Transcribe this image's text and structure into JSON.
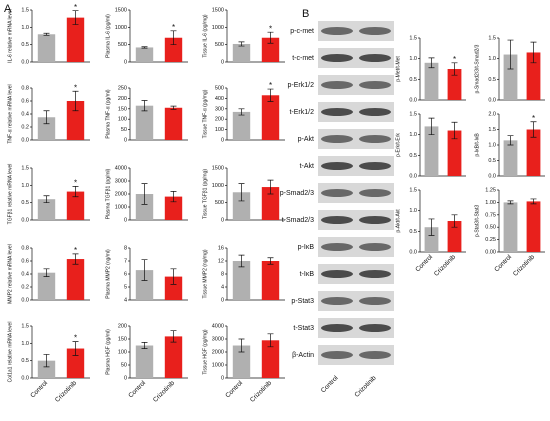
{
  "panel_labels": [
    "A",
    "B"
  ],
  "chart_data": [
    {
      "type": "bar",
      "ylabel": "IL-6 relative mRNA level",
      "values": [
        0.8,
        1.28
      ],
      "errors": [
        0.03,
        0.2
      ],
      "colors": [
        "#b0b0b0",
        "#e8201c"
      ],
      "annotation": "*",
      "ylim": [
        0,
        1.5
      ],
      "yticks": [
        {
          "value": 0,
          "label": "0.0"
        },
        {
          "value": 0.5,
          "label": "0.5"
        },
        {
          "value": 1,
          "label": "1.0"
        },
        {
          "value": 1.5,
          "label": "1.5"
        }
      ]
    },
    {
      "type": "bar",
      "ylabel": "Plasma IL-6 (pg/ml)",
      "values": [
        420,
        700
      ],
      "errors": [
        20,
        200
      ],
      "colors": [
        "#b0b0b0",
        "#e8201c"
      ],
      "annotation": "*",
      "ylim": [
        0,
        1500
      ],
      "yticks": [
        0,
        500,
        1000,
        1500
      ]
    },
    {
      "type": "bar",
      "ylabel": "Tissue IL-6 (pg/mg)",
      "values": [
        520,
        700
      ],
      "errors": [
        60,
        160
      ],
      "colors": [
        "#b0b0b0",
        "#e8201c"
      ],
      "annotation": "*",
      "ylim": [
        0,
        1500
      ],
      "yticks": [
        0,
        500,
        1000,
        1500
      ]
    },
    {
      "type": "bar",
      "ylabel": "TNF-α relative mRNA level",
      "values": [
        0.35,
        0.6
      ],
      "errors": [
        0.1,
        0.15
      ],
      "colors": [
        "#b0b0b0",
        "#e8201c"
      ],
      "annotation": "*",
      "ylim": [
        0,
        0.8
      ],
      "yticks": [
        {
          "value": 0,
          "label": "0.0"
        },
        {
          "value": 0.2,
          "label": "0.2"
        },
        {
          "value": 0.4,
          "label": "0.4"
        },
        {
          "value": 0.6,
          "label": "0.6"
        },
        {
          "value": 0.8,
          "label": "0.8"
        }
      ]
    },
    {
      "type": "bar",
      "ylabel": "Plasma TNF-α (pg/ml)",
      "values": [
        165,
        155
      ],
      "errors": [
        25,
        8
      ],
      "colors": [
        "#b0b0b0",
        "#e8201c"
      ],
      "ylim": [
        0,
        250
      ],
      "yticks": [
        0,
        50,
        100,
        150,
        200,
        250
      ]
    },
    {
      "type": "bar",
      "ylabel": "Tissue TNF-α (pg/mg)",
      "values": [
        270,
        430
      ],
      "errors": [
        30,
        60
      ],
      "colors": [
        "#b0b0b0",
        "#e8201c"
      ],
      "annotation": "*",
      "ylim": [
        0,
        500
      ],
      "yticks": [
        0,
        100,
        200,
        300,
        400,
        500
      ]
    },
    {
      "type": "bar",
      "ylabel": "TGFβ1 relative mRNA level",
      "values": [
        0.6,
        0.82
      ],
      "errors": [
        0.1,
        0.15
      ],
      "colors": [
        "#b0b0b0",
        "#e8201c"
      ],
      "annotation": "*",
      "ylim": [
        0,
        1.5
      ],
      "yticks": [
        {
          "value": 0,
          "label": "0.0"
        },
        {
          "value": 0.5,
          "label": "0.5"
        },
        {
          "value": 1,
          "label": "1.0"
        },
        {
          "value": 1.5,
          "label": "1.5"
        }
      ]
    },
    {
      "type": "bar",
      "ylabel": "Plasma TGFβ1 (pg/ml)",
      "values": [
        2000,
        1800
      ],
      "errors": [
        800,
        400
      ],
      "colors": [
        "#b0b0b0",
        "#e8201c"
      ],
      "ylim": [
        0,
        4000
      ],
      "yticks": [
        0,
        1000,
        2000,
        3000,
        4000
      ]
    },
    {
      "type": "bar",
      "ylabel": "Tissue TGFβ1 (pg/mg)",
      "values": [
        800,
        950
      ],
      "errors": [
        250,
        200
      ],
      "colors": [
        "#b0b0b0",
        "#e8201c"
      ],
      "ylim": [
        0,
        1500
      ],
      "yticks": [
        0,
        500,
        1000,
        1500
      ]
    },
    {
      "type": "bar",
      "ylabel": "MMP2 relative mRNA level",
      "values": [
        0.42,
        0.63
      ],
      "errors": [
        0.06,
        0.08
      ],
      "colors": [
        "#b0b0b0",
        "#e8201c"
      ],
      "annotation": "*",
      "ylim": [
        0,
        0.8
      ],
      "yticks": [
        {
          "value": 0,
          "label": "0.0"
        },
        {
          "value": 0.2,
          "label": "0.2"
        },
        {
          "value": 0.4,
          "label": "0.4"
        },
        {
          "value": 0.6,
          "label": "0.6"
        },
        {
          "value": 0.8,
          "label": "0.8"
        }
      ]
    },
    {
      "type": "bar",
      "ylabel": "Plasma MMP2 (ng/ml)",
      "values": [
        6.3,
        5.8
      ],
      "errors": [
        0.8,
        0.6
      ],
      "colors": [
        "#b0b0b0",
        "#e8201c"
      ],
      "ylim": [
        4,
        8
      ],
      "yticks": [
        4,
        5,
        6,
        7,
        8
      ]
    },
    {
      "type": "bar",
      "ylabel": "Tissue MMP2 (ng/mg)",
      "values": [
        12,
        12
      ],
      "errors": [
        1.8,
        1
      ],
      "colors": [
        "#b0b0b0",
        "#e8201c"
      ],
      "ylim": [
        0,
        16
      ],
      "yticks": [
        0,
        4,
        8,
        12,
        16
      ]
    },
    {
      "type": "bar",
      "ylabel": "Col1a1 relative mRNA level",
      "categories": [
        "Control",
        "Crizotinib"
      ],
      "values": [
        0.5,
        0.85
      ],
      "errors": [
        0.18,
        0.2
      ],
      "colors": [
        "#b0b0b0",
        "#e8201c"
      ],
      "annotation": "*",
      "ylim": [
        0,
        1.5
      ],
      "yticks": [
        {
          "value": 0,
          "label": "0.0"
        },
        {
          "value": 0.5,
          "label": "0.5"
        },
        {
          "value": 1,
          "label": "1.0"
        },
        {
          "value": 1.5,
          "label": "1.5"
        }
      ]
    },
    {
      "type": "bar",
      "ylabel": "Plasma HGF (pg/ml)",
      "categories": [
        "Control",
        "Crizotinib"
      ],
      "values": [
        125,
        160
      ],
      "errors": [
        12,
        22
      ],
      "colors": [
        "#b0b0b0",
        "#e8201c"
      ],
      "ylim": [
        0,
        200
      ],
      "yticks": [
        0,
        50,
        100,
        150,
        200
      ]
    },
    {
      "type": "bar",
      "ylabel": "Tissue HGF (pg/mg)",
      "categories": [
        "Control",
        "Crizotinib"
      ],
      "values": [
        2500,
        2900
      ],
      "errors": [
        500,
        500
      ],
      "colors": [
        "#b0b0b0",
        "#e8201c"
      ],
      "ylim": [
        0,
        4000
      ],
      "yticks": [
        0,
        1000,
        2000,
        3000,
        4000
      ]
    },
    {
      "type": "bar",
      "ylabel": "p-Met/t-Met",
      "values": [
        0.9,
        0.75
      ],
      "errors": [
        0.12,
        0.15
      ],
      "colors": [
        "#b0b0b0",
        "#e8201c"
      ],
      "annotation": "*",
      "ylim": [
        0,
        1.5
      ],
      "yticks": [
        {
          "value": 0,
          "label": "0.0"
        },
        {
          "value": 0.5,
          "label": "0.5"
        },
        {
          "value": 1,
          "label": "1.0"
        },
        {
          "value": 1.5,
          "label": "1.5"
        }
      ]
    },
    {
      "type": "bar",
      "ylabel": "p-Smad2/3/t-Smad2/3",
      "values": [
        1.1,
        1.15
      ],
      "errors": [
        0.35,
        0.25
      ],
      "colors": [
        "#b0b0b0",
        "#e8201c"
      ],
      "ylim": [
        0,
        1.5
      ],
      "yticks": [
        {
          "value": 0,
          "label": "0.0"
        },
        {
          "value": 0.5,
          "label": "0.5"
        },
        {
          "value": 1,
          "label": "1.0"
        },
        {
          "value": 1.5,
          "label": "1.5"
        }
      ]
    },
    {
      "type": "bar",
      "ylabel": "p-Erk/t-Erk",
      "values": [
        1.2,
        1.1
      ],
      "errors": [
        0.2,
        0.2
      ],
      "colors": [
        "#b0b0b0",
        "#e8201c"
      ],
      "ylim": [
        0,
        1.5
      ],
      "yticks": [
        {
          "value": 0,
          "label": "0.0"
        },
        {
          "value": 0.5,
          "label": "0.5"
        },
        {
          "value": 1,
          "label": "1.0"
        },
        {
          "value": 1.5,
          "label": "1.5"
        }
      ]
    },
    {
      "type": "bar",
      "ylabel": "p-IκB/t-IκB",
      "values": [
        1.15,
        1.5
      ],
      "errors": [
        0.15,
        0.25
      ],
      "colors": [
        "#b0b0b0",
        "#e8201c"
      ],
      "annotation": "*",
      "ylim": [
        0,
        2
      ],
      "yticks": [
        {
          "value": 0,
          "label": "0.0"
        },
        {
          "value": 0.5,
          "label": "0.5"
        },
        {
          "value": 1,
          "label": "1.0"
        },
        {
          "value": 1.5,
          "label": "1.5"
        },
        {
          "value": 2,
          "label": "2.0"
        }
      ]
    },
    {
      "type": "bar",
      "ylabel": "p-Akt/t-Akt",
      "categories": [
        "Control",
        "Crizotinib"
      ],
      "values": [
        0.6,
        0.75
      ],
      "errors": [
        0.2,
        0.15
      ],
      "colors": [
        "#b0b0b0",
        "#e8201c"
      ],
      "ylim": [
        0,
        1.5
      ],
      "yticks": [
        {
          "value": 0,
          "label": "0.0"
        },
        {
          "value": 0.5,
          "label": "0.5"
        },
        {
          "value": 1,
          "label": "1.0"
        },
        {
          "value": 1.5,
          "label": "1.5"
        }
      ]
    },
    {
      "type": "bar",
      "ylabel": "p-Stat3/t-Stat3",
      "categories": [
        "Control",
        "Crizotinib"
      ],
      "values": [
        1.0,
        1.02
      ],
      "errors": [
        0.03,
        0.05
      ],
      "colors": [
        "#b0b0b0",
        "#e8201c"
      ],
      "ylim": [
        0,
        1.25
      ],
      "yticks": [
        {
          "value": 0,
          "label": "0.00"
        },
        {
          "value": 0.25,
          "label": "0.25"
        },
        {
          "value": 0.5,
          "label": "0.50"
        },
        {
          "value": 0.75,
          "label": "0.75"
        },
        {
          "value": 1,
          "label": "1.00"
        },
        {
          "value": 1.25,
          "label": "1.25"
        }
      ]
    }
  ],
  "blot": {
    "bands": [
      "p-c-met",
      "t-c-met",
      "p-Erk1/2",
      "t-Erk1/2",
      "p-Akt",
      "t-Akt",
      "p-Smad2/3",
      "t-Smad2/3",
      "p-IκB",
      "t-IκB",
      "p-Stat3",
      "t-Stat3",
      "β-Actin"
    ],
    "lanes": [
      "Control",
      "Crizotinib"
    ]
  }
}
